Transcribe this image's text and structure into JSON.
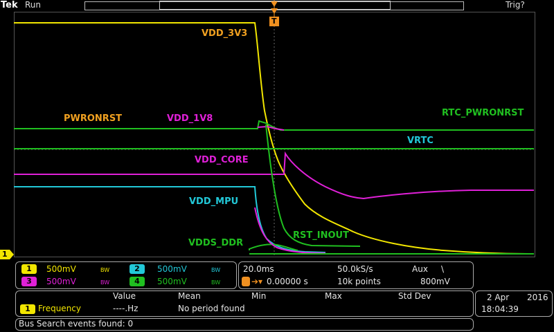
{
  "brand": "Tek",
  "acq_status": "Run",
  "trigger_status": "Trig?",
  "trigger_marker": "T",
  "ch1_ground_marker": "1",
  "trace_labels": {
    "vdd_3v3": "VDD_3V3",
    "pwronrst": "PWRONRST",
    "vdd_1v8": "VDD_1V8",
    "rtc_pwronrst": "RTC_PWRONRST",
    "vrtc": "VRTC",
    "vdd_core": "VDD_CORE",
    "vdd_mpu": "VDD_MPU",
    "vdds_ddr": "VDDS_DDR",
    "rst_inout": "RST_INOUT"
  },
  "channels": [
    {
      "num": "1",
      "scale": "500mV",
      "bw": "BW",
      "color": "#f2e600"
    },
    {
      "num": "2",
      "scale": "500mV",
      "bw": "BW",
      "color": "#22c8d8"
    },
    {
      "num": "3",
      "scale": "500mV",
      "bw": "BW",
      "color": "#e020d8"
    },
    {
      "num": "4",
      "scale": "500mV",
      "bw": "BW",
      "color": "#20c020"
    }
  ],
  "timebase": {
    "horizontal_scale": "20.0ms",
    "sample_rate": "50.0kS/s",
    "trigger_source": "Aux",
    "trigger_slope": "\\",
    "trigger_position": "0.00000 s",
    "record_length": "10k points",
    "trigger_level": "800mV"
  },
  "measurements": {
    "headers": [
      "Value",
      "Mean",
      "Min",
      "Max",
      "Std Dev"
    ],
    "rows": [
      {
        "channel": "1",
        "name": "Frequency",
        "value": "----.Hz",
        "note": "No period found"
      }
    ]
  },
  "datetime": {
    "date": "2 Apr",
    "year": "2016",
    "time": "18:04:39"
  },
  "bus_search": "Bus Search events found: 0",
  "colors": {
    "ch1": "#f2e600",
    "ch2": "#22c8d8",
    "ch3": "#e020d8",
    "ch4": "#20c020",
    "trigger": "#f09020",
    "label_orange": "#f0a020"
  }
}
